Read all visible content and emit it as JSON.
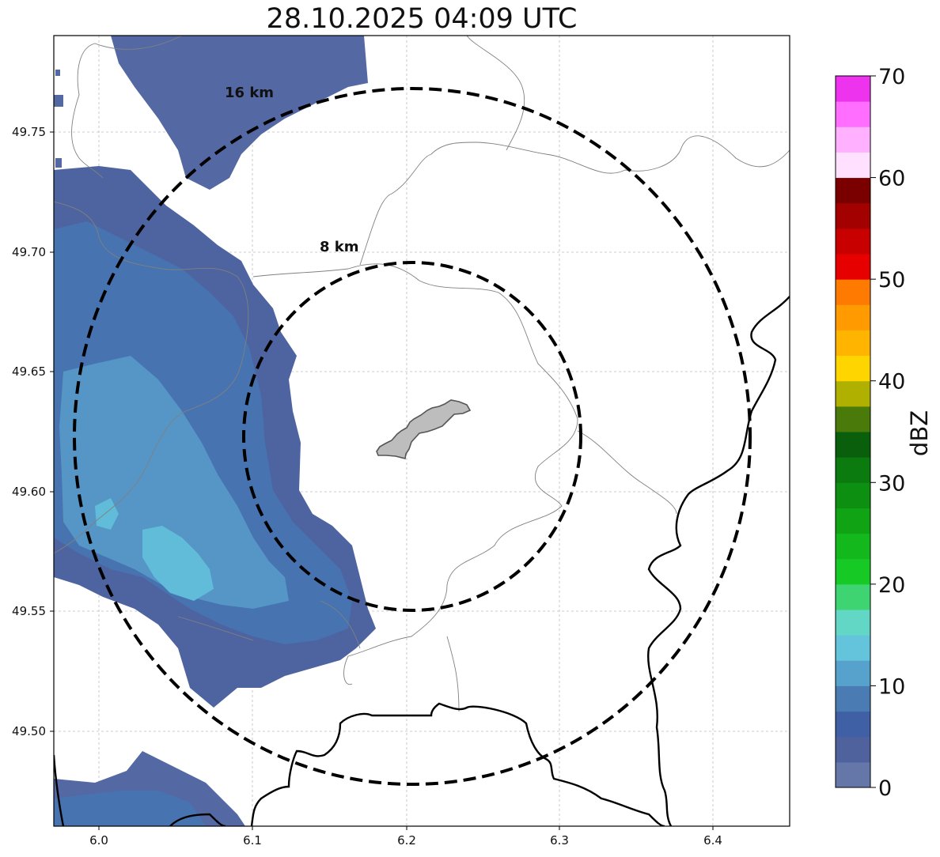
{
  "title": "28.10.2025 04:09 UTC",
  "map": {
    "lon_range": [
      5.97,
      6.45
    ],
    "lat_range": [
      49.46,
      49.79
    ],
    "grid": true,
    "x_ticks": [
      "6.0",
      "6.1",
      "6.2",
      "6.3",
      "6.4"
    ],
    "y_ticks": [
      "49.50",
      "49.55",
      "49.60",
      "49.65",
      "49.70",
      "49.75"
    ],
    "range_rings": [
      {
        "label": "8 km",
        "style": "dashed"
      },
      {
        "label": "16 km",
        "style": "dashed"
      }
    ],
    "radar_echo_colors": [
      "#6070a8",
      "#4e64a0",
      "#3f5ea6",
      "#4b78b4",
      "#56a0cc",
      "#62c2de"
    ],
    "built_up_area_color": "#bdbdbd"
  },
  "colorbar": {
    "label": "dBZ",
    "ticks": [
      "0",
      "10",
      "20",
      "30",
      "40",
      "50",
      "60",
      "70"
    ],
    "colors": [
      "#6576a8",
      "#4f629e",
      "#4060a5",
      "#4a7bb3",
      "#56a2cc",
      "#64c4dc",
      "#62d7c6",
      "#3ed472",
      "#16c925",
      "#13b81c",
      "#10a314",
      "#0d8f12",
      "#0b7a0f",
      "#095f0b",
      "#4a7a0a",
      "#b0b000",
      "#ffd500",
      "#ffb500",
      "#ff9a00",
      "#ff7a00",
      "#e60000",
      "#c80000",
      "#a30000",
      "#7a0000",
      "#ffe0ff",
      "#ffb0ff",
      "#ff6eff",
      "#ee33ee"
    ]
  }
}
